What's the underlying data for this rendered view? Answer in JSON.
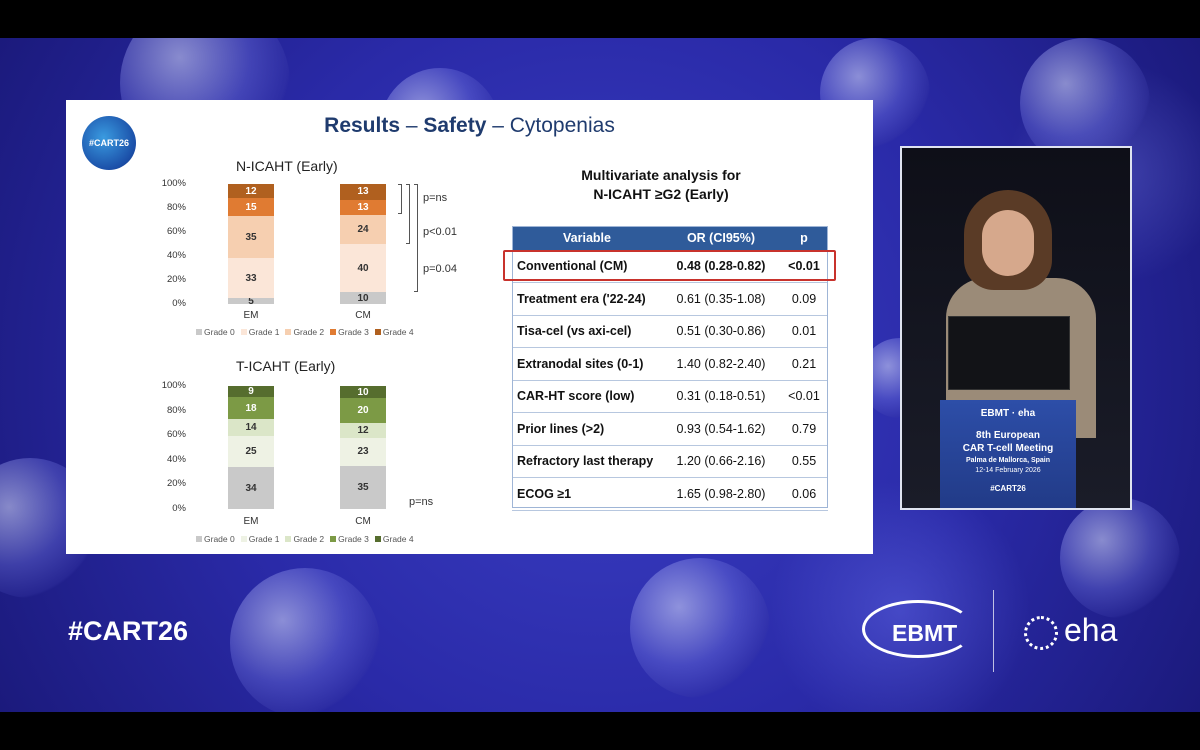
{
  "slide": {
    "logo_text": "#CART26",
    "title_parts": [
      "Results",
      " – ",
      "Safety",
      " – Cytopenias"
    ]
  },
  "charts": [
    {
      "title": "N-ICAHT (Early)",
      "categories": [
        "EM",
        "CM"
      ],
      "yticks": [
        "100%",
        "80%",
        "60%",
        "40%",
        "20%",
        "0%"
      ],
      "legend": [
        "Grade 0",
        "Grade 1",
        "Grade 2",
        "Grade 3",
        "Grade 4"
      ],
      "colors": [
        "#c9c9c9",
        "#fbe6d8",
        "#f6cfb0",
        "#e07b32",
        "#b0601f"
      ],
      "series": [
        {
          "name": "Grade 0",
          "values": [
            5,
            10
          ],
          "labels": [
            "5",
            "10"
          ]
        },
        {
          "name": "Grade 1",
          "values": [
            33,
            40
          ],
          "labels": [
            "33",
            "40"
          ]
        },
        {
          "name": "Grade 2",
          "values": [
            35,
            24
          ],
          "labels": [
            "35",
            "24"
          ]
        },
        {
          "name": "Grade 3",
          "values": [
            15,
            13
          ],
          "labels": [
            "15",
            "13"
          ]
        },
        {
          "name": "Grade 4",
          "values": [
            12,
            13
          ],
          "labels": [
            "12",
            "13"
          ]
        }
      ],
      "pvalues": [
        "p=ns",
        "p<0.01",
        "p=0.04"
      ]
    },
    {
      "title": "T-ICAHT (Early)",
      "categories": [
        "EM",
        "CM"
      ],
      "yticks": [
        "100%",
        "80%",
        "60%",
        "40%",
        "20%",
        "0%"
      ],
      "legend": [
        "Grade 0",
        "Grade 1",
        "Grade 2",
        "Grade 3",
        "Grade 4"
      ],
      "colors": [
        "#c9c9c9",
        "#eef2e4",
        "#dbe6c8",
        "#7c9a45",
        "#566d2e"
      ],
      "series": [
        {
          "name": "Grade 0",
          "values": [
            34,
            35
          ],
          "labels": [
            "34",
            "35"
          ]
        },
        {
          "name": "Grade 1",
          "values": [
            25,
            23
          ],
          "labels": [
            "25",
            "23"
          ]
        },
        {
          "name": "Grade 2",
          "values": [
            14,
            12
          ],
          "labels": [
            "14",
            "12"
          ]
        },
        {
          "name": "Grade 3",
          "values": [
            18,
            20
          ],
          "labels": [
            "18",
            "20"
          ]
        },
        {
          "name": "Grade 4",
          "values": [
            9,
            10
          ],
          "labels": [
            "9",
            "10"
          ]
        }
      ],
      "pvalues": [
        "p=ns"
      ]
    }
  ],
  "multivariate": {
    "title_line1": "Multivariate analysis for",
    "title_line2": "N-ICAHT ≥G2 (Early)",
    "headers": [
      "Variable",
      "OR (CI95%)",
      "p"
    ],
    "rows": [
      {
        "variable": "Conventional (CM)",
        "or": "0.48 (0.28-0.82)",
        "p": "<0.01",
        "highlight": true
      },
      {
        "variable": "Treatment era ('22-24)",
        "or": "0.61 (0.35-1.08)",
        "p": "0.09"
      },
      {
        "variable": "Tisa-cel (vs axi-cel)",
        "or": "0.51 (0.30-0.86)",
        "p": "0.01"
      },
      {
        "variable": "Extranodal sites (0-1)",
        "or": "1.40 (0.82-2.40)",
        "p": "0.21"
      },
      {
        "variable": "CAR-HT score (low)",
        "or": "0.31 (0.18-0.51)",
        "p": "<0.01"
      },
      {
        "variable": "Prior lines (>2)",
        "or": "0.93 (0.54-1.62)",
        "p": "0.79"
      },
      {
        "variable": "Refractory last therapy",
        "or": "1.20 (0.66-2.16)",
        "p": "0.55"
      },
      {
        "variable": "ECOG ≥1",
        "or": "1.65 (0.98-2.80)",
        "p": "0.06"
      }
    ]
  },
  "podium": {
    "org_left": "EBMT",
    "org_right": "eha",
    "line1": "8th European",
    "line2": "CAR T-cell Meeting",
    "line3": "Palma de Mallorca, Spain",
    "line4": "12-14 February 2026",
    "hashtag": "#CART26"
  },
  "footer": {
    "hashtag": "#CART26",
    "logo_left": "EBMT",
    "logo_right": "eha"
  }
}
